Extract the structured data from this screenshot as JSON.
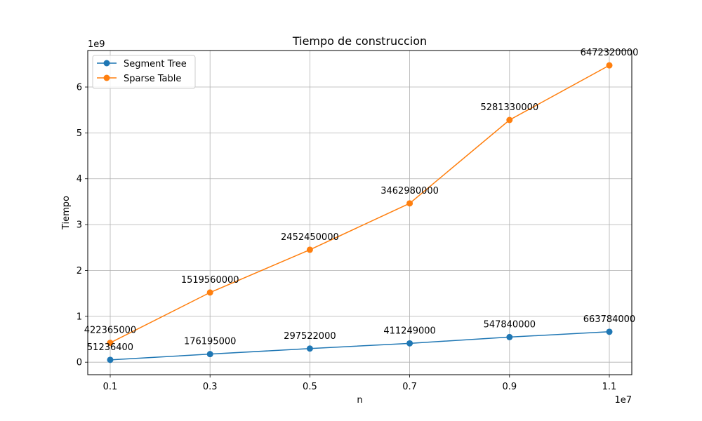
{
  "chart_data": {
    "type": "line",
    "title": "Tiempo de construccion",
    "xlabel": "n",
    "ylabel": "Tiempo",
    "x_offset_text": "1e7",
    "y_offset_text": "1e9",
    "x_scale": 10000000,
    "y_scale": 1000000000,
    "x": [
      1000000,
      3000000,
      5000000,
      7000000,
      9000000,
      11000000
    ],
    "x_tick_labels": [
      "0.1",
      "0.3",
      "0.5",
      "0.7",
      "0.9",
      "1.1"
    ],
    "y_ticks": [
      0,
      1,
      2,
      3,
      4,
      5,
      6
    ],
    "xlim": [
      550000,
      11450000
    ],
    "ylim": [
      -272318000,
      6795920000
    ],
    "grid": true,
    "legend_position": "upper-left",
    "series": [
      {
        "name": "Segment Tree",
        "color": "#1f77b4",
        "marker": "circle",
        "values": [
          51236400,
          176195000,
          297522000,
          411249000,
          547840000,
          663784000
        ],
        "labels": [
          "51236400",
          "176195000",
          "297522000",
          "411249000",
          "547840000",
          "663784000"
        ]
      },
      {
        "name": "Sparse Table",
        "color": "#ff7f0e",
        "marker": "circle",
        "values": [
          422365000,
          1519560000,
          2452450000,
          3462980000,
          5281330000,
          6472320000
        ],
        "labels": [
          "422365000",
          "1519560000",
          "2452450000",
          "3462980000",
          "5281330000",
          "6472320000"
        ]
      }
    ]
  }
}
